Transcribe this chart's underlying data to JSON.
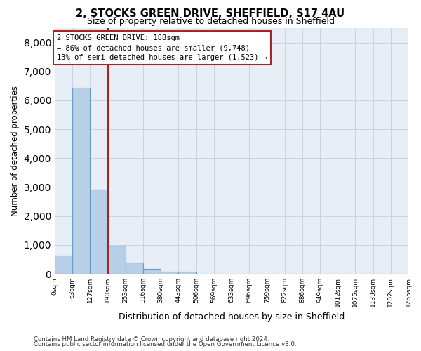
{
  "title_line1": "2, STOCKS GREEN DRIVE, SHEFFIELD, S17 4AU",
  "title_line2": "Size of property relative to detached houses in Sheffield",
  "xlabel": "Distribution of detached houses by size in Sheffield",
  "ylabel": "Number of detached properties",
  "bar_values": [
    620,
    6430,
    2920,
    980,
    380,
    160,
    80,
    80,
    0,
    0,
    0,
    0,
    0,
    0,
    0,
    0,
    0,
    0,
    0,
    0
  ],
  "bin_labels": [
    "0sqm",
    "63sqm",
    "127sqm",
    "190sqm",
    "253sqm",
    "316sqm",
    "380sqm",
    "443sqm",
    "506sqm",
    "569sqm",
    "633sqm",
    "696sqm",
    "759sqm",
    "822sqm",
    "886sqm",
    "949sqm",
    "1012sqm",
    "1075sqm",
    "1139sqm",
    "1202sqm",
    "1265sqm"
  ],
  "bar_color": "#b8cfe8",
  "bar_edge_color": "#6699cc",
  "grid_color": "#c8d4e4",
  "background_color": "#e8eef6",
  "vline_color": "#aa2222",
  "annotation_text": "2 STOCKS GREEN DRIVE: 188sqm\n← 86% of detached houses are smaller (9,748)\n13% of semi-detached houses are larger (1,523) →",
  "annotation_box_color": "#aa2222",
  "ylim": [
    0,
    8500
  ],
  "yticks": [
    0,
    1000,
    2000,
    3000,
    4000,
    5000,
    6000,
    7000,
    8000
  ],
  "footnote1": "Contains HM Land Registry data © Crown copyright and database right 2024.",
  "footnote2": "Contains public sector information licensed under the Open Government Licence v3.0."
}
